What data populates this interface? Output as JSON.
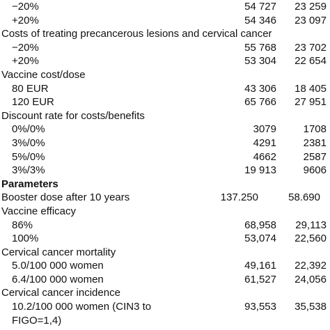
{
  "table": {
    "rows": [
      [
        "−20%",
        "54 727",
        "23 259"
      ],
      [
        "+20%",
        "54 346",
        "23 097"
      ],
      [
        "Costs of treating precancerous lesions and cervical cancer"
      ],
      [
        "−20%",
        "55 768",
        "23 702"
      ],
      [
        "+20%",
        "53 304",
        "22 654"
      ],
      [
        "Vaccine cost/dose"
      ],
      [
        "80 EUR",
        "43 306",
        "18 405"
      ],
      [
        "120 EUR",
        "65 766",
        "27 951"
      ],
      [
        "Discount rate for costs/benefits"
      ],
      [
        "0%/0%",
        "3079",
        "1708"
      ],
      [
        "3%/0%",
        "4291",
        "2381"
      ],
      [
        "5%/0%",
        "4662",
        "2587"
      ],
      [
        "3%/3%",
        "19 913",
        "9606"
      ],
      [
        "Parameters"
      ],
      [
        "Booster dose after 10 years",
        "137.250",
        "58.690"
      ],
      [
        "Vaccine efficacy"
      ],
      [
        "86%",
        "68,958",
        "29,113"
      ],
      [
        "100%",
        "53,074",
        "22,560"
      ],
      [
        "Cervical cancer mortality"
      ],
      [
        "5.0/100 000 women",
        "49,161",
        "22,392"
      ],
      [
        "6.4/100 000 women",
        "61,527",
        "24,056"
      ],
      [
        "Cervical cancer incidence"
      ],
      [
        "10.2/100 000 women (CIN3 to",
        "93,553",
        "35,538"
      ],
      [
        "FIGO=1,4)"
      ]
    ]
  }
}
